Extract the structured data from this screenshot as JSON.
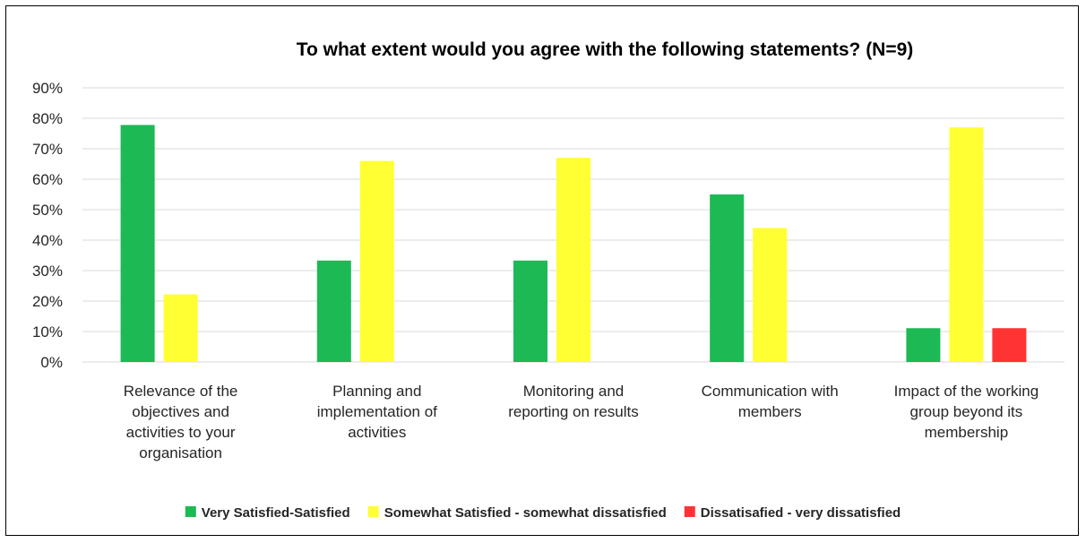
{
  "chart_data": {
    "type": "bar",
    "title": "To what extent would you agree with the following statements? (N=9)",
    "categories": [
      [
        "Relevance of the",
        "objectives and",
        "activities to your",
        "organisation"
      ],
      [
        "Planning and",
        "implementation of",
        "activities"
      ],
      [
        "Monitoring and",
        "reporting on results"
      ],
      [
        "Communication with",
        "members"
      ],
      [
        "Impact of the working",
        "group beyond its",
        "membership"
      ]
    ],
    "series": [
      {
        "name": "Very Satisfied-Satisfied",
        "color": "#1db954",
        "values": [
          77.8,
          33.3,
          33.3,
          55.0,
          11.1
        ]
      },
      {
        "name": "Somewhat Satisfied - somewhat dissatisfied",
        "color": "#ffff33",
        "values": [
          22.2,
          66.0,
          67.0,
          44.0,
          77.0
        ]
      },
      {
        "name": "Dissatisafied - very dissatisfied",
        "color": "#ff3333",
        "values": [
          0,
          0,
          0,
          0,
          11.1
        ]
      }
    ],
    "y_ticks": [
      "0%",
      "10%",
      "20%",
      "30%",
      "40%",
      "50%",
      "60%",
      "70%",
      "80%",
      "90%"
    ],
    "ylim": [
      0,
      90
    ],
    "grid": true,
    "legend_position": "bottom"
  }
}
